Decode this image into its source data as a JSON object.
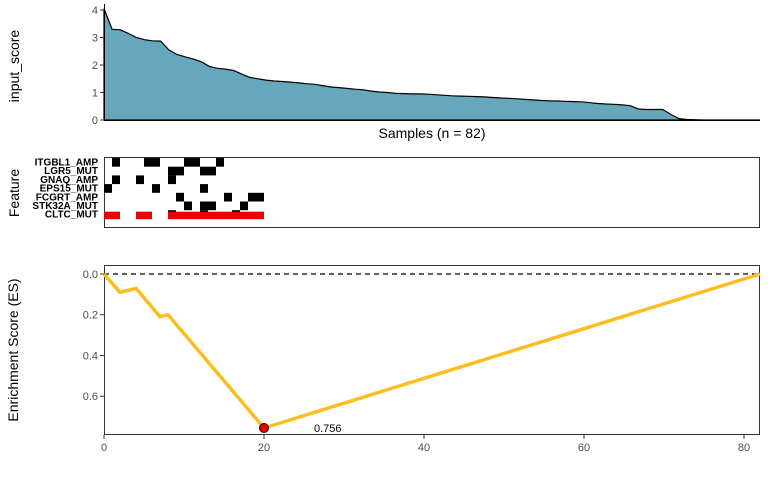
{
  "chart_data": [
    {
      "type": "area",
      "ylabel": "input_score",
      "xlabel": "Samples (n = 82)",
      "ylim": [
        0,
        4.1
      ],
      "yticks": [
        "0",
        "1",
        "2",
        "3",
        "4"
      ],
      "fill_color": "#67a7bb",
      "n": 82,
      "values": [
        4.05,
        3.3,
        3.28,
        3.15,
        3.0,
        2.92,
        2.88,
        2.87,
        2.55,
        2.38,
        2.3,
        2.22,
        2.12,
        1.95,
        1.88,
        1.85,
        1.8,
        1.67,
        1.55,
        1.5,
        1.45,
        1.42,
        1.4,
        1.38,
        1.35,
        1.32,
        1.3,
        1.25,
        1.2,
        1.18,
        1.15,
        1.12,
        1.1,
        1.05,
        1.02,
        1.0,
        0.97,
        0.96,
        0.95,
        0.95,
        0.94,
        0.92,
        0.9,
        0.88,
        0.87,
        0.86,
        0.85,
        0.84,
        0.82,
        0.8,
        0.79,
        0.77,
        0.75,
        0.73,
        0.71,
        0.7,
        0.69,
        0.68,
        0.67,
        0.66,
        0.63,
        0.6,
        0.58,
        0.57,
        0.55,
        0.52,
        0.4,
        0.38,
        0.38,
        0.38,
        0.2,
        0.05,
        0.02,
        0.01,
        0.0,
        0.0,
        0.0,
        0.0,
        0.0,
        0.0,
        0.0,
        0.0
      ]
    },
    {
      "type": "heatmap",
      "ylabel": "Feature",
      "features": [
        "ITGBL1_AMP",
        "LGR5_MUT",
        "GNAQ_AMP",
        "EPS15_MUT",
        "FCGRT_AMP",
        "STK32A_MUT",
        "CLTC_MUT"
      ],
      "hit_color": "#000000",
      "highlight_color": "#ee0000",
      "hits": [
        [
          1,
          5,
          6,
          10,
          11,
          14
        ],
        [
          8,
          9,
          12,
          13
        ],
        [
          1,
          4,
          8
        ],
        [
          0,
          6,
          12
        ],
        [
          9,
          15,
          18,
          19
        ],
        [
          10,
          12,
          13,
          17
        ],
        [
          8,
          12,
          16
        ]
      ],
      "highlight": [
        0,
        1,
        4,
        5,
        8,
        9,
        10,
        11,
        12,
        13,
        14,
        15,
        16,
        17,
        18,
        19
      ]
    },
    {
      "type": "line",
      "ylabel": "Enrichment Score (ES)",
      "xlim": [
        0,
        82
      ],
      "ylim": [
        0.8,
        -0.04
      ],
      "xticks": [
        "0",
        "20",
        "40",
        "60",
        "80"
      ],
      "yticks": [
        "0.0",
        "0.2",
        "0.4",
        "0.6"
      ],
      "line_color": "#fbbe21",
      "x": [
        0,
        2,
        4,
        7,
        8,
        20,
        82
      ],
      "y": [
        0.0,
        0.09,
        0.07,
        0.21,
        0.2,
        0.756,
        0.0
      ],
      "baseline": 0.0,
      "peak": {
        "x": 20,
        "y": 0.756,
        "label": "0.756",
        "color": "#ee0000"
      }
    }
  ]
}
